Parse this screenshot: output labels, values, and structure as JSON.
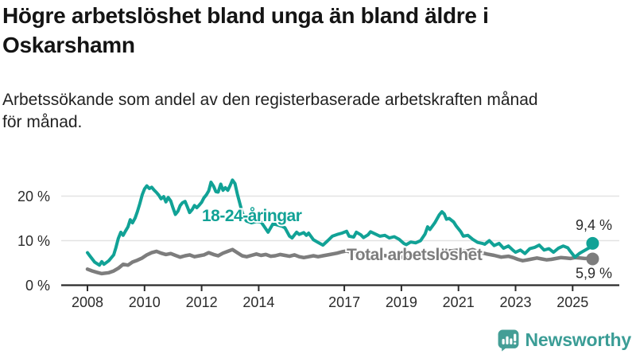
{
  "page": {
    "background": "#ffffff"
  },
  "header": {
    "title": "Högre arbetslöshet bland unga än bland äldre i Oskarshamn",
    "subtitle": "Arbetssökande som andel av den registerbaserade arbetskraften månad för månad."
  },
  "footer": {
    "brand": "Newsworthy",
    "brand_color": "#3b9d96"
  },
  "colors": {
    "grid": "#e2e2e2",
    "axis": "#2b2b2b",
    "tick_text": "#2b2b2b",
    "end_label_text": "#2b2b2b"
  },
  "chart_data": {
    "type": "line",
    "title": "Högre arbetslöshet bland unga än bland äldre i Oskarshamn",
    "subtitle": "Arbetssökande som andel av den registerbaserade arbetskraften månad för månad.",
    "xlabel": "",
    "ylabel": "",
    "unit": "%",
    "grid": "horizontal",
    "legend_position": "inline-labels",
    "xlim": [
      2007.1,
      2026.6
    ],
    "ylim": [
      0,
      28
    ],
    "x_ticks": [
      2008,
      2010,
      2012,
      2014,
      2017,
      2019,
      2021,
      2023,
      2025
    ],
    "y_ticks": [
      0,
      10,
      20
    ],
    "y_tick_labels": [
      "0 %",
      "10 %",
      "20 %"
    ],
    "series": [
      {
        "name": "18-24-åringar",
        "color": "#11a296",
        "line_width": 4,
        "end_label": "9,4 %",
        "end_label_side": "above",
        "last_value": 9.4,
        "points": [
          [
            2008.0,
            7.3
          ],
          [
            2008.08,
            6.6
          ],
          [
            2008.25,
            5.2
          ],
          [
            2008.42,
            4.5
          ],
          [
            2008.5,
            5.3
          ],
          [
            2008.58,
            4.7
          ],
          [
            2008.75,
            5.5
          ],
          [
            2008.92,
            6.8
          ],
          [
            2009.0,
            8.5
          ],
          [
            2009.08,
            10.5
          ],
          [
            2009.17,
            11.9
          ],
          [
            2009.25,
            11.2
          ],
          [
            2009.33,
            12.1
          ],
          [
            2009.42,
            13.1
          ],
          [
            2009.5,
            14.7
          ],
          [
            2009.58,
            14.0
          ],
          [
            2009.67,
            15.1
          ],
          [
            2009.75,
            16.5
          ],
          [
            2009.83,
            18.2
          ],
          [
            2009.92,
            20.3
          ],
          [
            2010.0,
            21.6
          ],
          [
            2010.08,
            22.3
          ],
          [
            2010.17,
            21.7
          ],
          [
            2010.25,
            22.0
          ],
          [
            2010.33,
            21.4
          ],
          [
            2010.42,
            20.8
          ],
          [
            2010.5,
            20.2
          ],
          [
            2010.58,
            19.4
          ],
          [
            2010.67,
            19.9
          ],
          [
            2010.75,
            18.7
          ],
          [
            2010.83,
            19.7
          ],
          [
            2010.92,
            18.9
          ],
          [
            2011.0,
            17.3
          ],
          [
            2011.08,
            15.9
          ],
          [
            2011.17,
            16.6
          ],
          [
            2011.25,
            17.9
          ],
          [
            2011.33,
            18.5
          ],
          [
            2011.42,
            18.8
          ],
          [
            2011.5,
            17.6
          ],
          [
            2011.58,
            16.3
          ],
          [
            2011.67,
            17.0
          ],
          [
            2011.75,
            17.9
          ],
          [
            2011.83,
            17.4
          ],
          [
            2011.92,
            18.0
          ],
          [
            2012.0,
            18.6
          ],
          [
            2012.08,
            19.6
          ],
          [
            2012.17,
            20.3
          ],
          [
            2012.25,
            21.2
          ],
          [
            2012.33,
            23.1
          ],
          [
            2012.42,
            22.2
          ],
          [
            2012.5,
            21.0
          ],
          [
            2012.58,
            20.9
          ],
          [
            2012.67,
            22.7
          ],
          [
            2012.75,
            21.3
          ],
          [
            2012.83,
            21.9
          ],
          [
            2012.92,
            21.3
          ],
          [
            2013.0,
            22.4
          ],
          [
            2013.08,
            23.6
          ],
          [
            2013.17,
            22.8
          ],
          [
            2013.25,
            20.5
          ],
          [
            2013.33,
            18.6
          ],
          [
            2013.42,
            16.4
          ],
          [
            2013.5,
            15.0
          ],
          [
            2013.58,
            14.4
          ],
          [
            2013.75,
            14.0
          ],
          [
            2013.92,
            14.3
          ],
          [
            2014.08,
            14.2
          ],
          [
            2014.17,
            13.4
          ],
          [
            2014.33,
            11.9
          ],
          [
            2014.5,
            13.8
          ],
          [
            2014.67,
            13.5
          ],
          [
            2014.83,
            13.2
          ],
          [
            2014.92,
            12.9
          ],
          [
            2015.08,
            11.0
          ],
          [
            2015.17,
            10.6
          ],
          [
            2015.33,
            11.9
          ],
          [
            2015.42,
            11.4
          ],
          [
            2015.58,
            11.8
          ],
          [
            2015.67,
            11.2
          ],
          [
            2015.75,
            11.7
          ],
          [
            2015.92,
            10.2
          ],
          [
            2016.08,
            9.6
          ],
          [
            2016.25,
            9.0
          ],
          [
            2016.42,
            10.0
          ],
          [
            2016.58,
            11.0
          ],
          [
            2016.75,
            11.4
          ],
          [
            2016.92,
            11.7
          ],
          [
            2017.08,
            12.1
          ],
          [
            2017.17,
            11.0
          ],
          [
            2017.33,
            10.8
          ],
          [
            2017.42,
            11.9
          ],
          [
            2017.58,
            11.3
          ],
          [
            2017.67,
            10.7
          ],
          [
            2017.83,
            11.3
          ],
          [
            2017.92,
            12.0
          ],
          [
            2018.08,
            11.5
          ],
          [
            2018.25,
            11.0
          ],
          [
            2018.42,
            11.2
          ],
          [
            2018.58,
            10.6
          ],
          [
            2018.75,
            10.9
          ],
          [
            2018.92,
            10.3
          ],
          [
            2019.08,
            9.4
          ],
          [
            2019.17,
            9.1
          ],
          [
            2019.33,
            9.7
          ],
          [
            2019.5,
            9.5
          ],
          [
            2019.67,
            10.0
          ],
          [
            2019.83,
            11.5
          ],
          [
            2019.92,
            13.1
          ],
          [
            2020.0,
            12.5
          ],
          [
            2020.17,
            14.0
          ],
          [
            2020.33,
            15.8
          ],
          [
            2020.42,
            16.5
          ],
          [
            2020.5,
            16.0
          ],
          [
            2020.58,
            14.8
          ],
          [
            2020.67,
            15.0
          ],
          [
            2020.83,
            14.2
          ],
          [
            2020.92,
            13.3
          ],
          [
            2021.08,
            12.0
          ],
          [
            2021.17,
            11.0
          ],
          [
            2021.33,
            11.2
          ],
          [
            2021.5,
            10.3
          ],
          [
            2021.67,
            9.6
          ],
          [
            2021.83,
            9.4
          ],
          [
            2021.92,
            9.2
          ],
          [
            2022.08,
            10.0
          ],
          [
            2022.25,
            8.9
          ],
          [
            2022.42,
            9.4
          ],
          [
            2022.58,
            8.3
          ],
          [
            2022.75,
            8.8
          ],
          [
            2022.92,
            7.8
          ],
          [
            2023.0,
            7.4
          ],
          [
            2023.17,
            7.9
          ],
          [
            2023.33,
            7.1
          ],
          [
            2023.5,
            8.2
          ],
          [
            2023.67,
            8.5
          ],
          [
            2023.83,
            9.0
          ],
          [
            2024.0,
            7.9
          ],
          [
            2024.17,
            8.2
          ],
          [
            2024.33,
            7.4
          ],
          [
            2024.5,
            8.3
          ],
          [
            2024.67,
            8.8
          ],
          [
            2024.83,
            8.4
          ],
          [
            2024.92,
            7.6
          ],
          [
            2025.08,
            6.3
          ],
          [
            2025.25,
            7.2
          ],
          [
            2025.42,
            7.8
          ],
          [
            2025.58,
            8.4
          ],
          [
            2025.7,
            9.4
          ]
        ]
      },
      {
        "name": "Total arbetslöshet",
        "color": "#7d7d7d",
        "line_width": 4.5,
        "end_label": "5,9 %",
        "end_label_side": "below",
        "last_value": 5.9,
        "points": [
          [
            2008.0,
            3.6
          ],
          [
            2008.17,
            3.2
          ],
          [
            2008.33,
            2.9
          ],
          [
            2008.5,
            2.6
          ],
          [
            2008.75,
            2.8
          ],
          [
            2008.92,
            3.2
          ],
          [
            2009.08,
            3.8
          ],
          [
            2009.25,
            4.7
          ],
          [
            2009.42,
            4.5
          ],
          [
            2009.58,
            5.2
          ],
          [
            2009.75,
            5.6
          ],
          [
            2009.92,
            6.1
          ],
          [
            2010.08,
            6.8
          ],
          [
            2010.25,
            7.3
          ],
          [
            2010.42,
            7.6
          ],
          [
            2010.58,
            7.2
          ],
          [
            2010.75,
            6.9
          ],
          [
            2010.92,
            7.1
          ],
          [
            2011.08,
            6.7
          ],
          [
            2011.25,
            6.3
          ],
          [
            2011.42,
            6.6
          ],
          [
            2011.58,
            6.8
          ],
          [
            2011.75,
            6.4
          ],
          [
            2011.92,
            6.6
          ],
          [
            2012.08,
            6.8
          ],
          [
            2012.25,
            7.3
          ],
          [
            2012.42,
            6.9
          ],
          [
            2012.58,
            6.6
          ],
          [
            2012.75,
            7.2
          ],
          [
            2012.92,
            7.6
          ],
          [
            2013.08,
            8.0
          ],
          [
            2013.25,
            7.3
          ],
          [
            2013.42,
            6.6
          ],
          [
            2013.58,
            6.4
          ],
          [
            2013.75,
            6.7
          ],
          [
            2013.92,
            7.0
          ],
          [
            2014.08,
            6.7
          ],
          [
            2014.25,
            6.9
          ],
          [
            2014.42,
            6.5
          ],
          [
            2014.58,
            6.6
          ],
          [
            2014.75,
            6.9
          ],
          [
            2014.92,
            6.7
          ],
          [
            2015.08,
            6.5
          ],
          [
            2015.25,
            6.8
          ],
          [
            2015.42,
            6.4
          ],
          [
            2015.58,
            6.2
          ],
          [
            2015.75,
            6.4
          ],
          [
            2015.92,
            6.6
          ],
          [
            2016.08,
            6.4
          ],
          [
            2016.25,
            6.6
          ],
          [
            2016.5,
            6.9
          ],
          [
            2016.75,
            7.2
          ],
          [
            2016.92,
            7.5
          ],
          [
            2017.08,
            7.7
          ],
          [
            2017.25,
            7.4
          ],
          [
            2017.5,
            7.2
          ],
          [
            2017.75,
            7.0
          ],
          [
            2018.0,
            6.9
          ],
          [
            2018.25,
            6.7
          ],
          [
            2018.5,
            6.6
          ],
          [
            2018.75,
            6.4
          ],
          [
            2019.0,
            6.3
          ],
          [
            2019.25,
            6.2
          ],
          [
            2019.5,
            6.4
          ],
          [
            2019.75,
            6.6
          ],
          [
            2020.0,
            6.9
          ],
          [
            2020.25,
            7.4
          ],
          [
            2020.5,
            7.8
          ],
          [
            2020.75,
            7.7
          ],
          [
            2021.0,
            7.9
          ],
          [
            2021.25,
            7.6
          ],
          [
            2021.5,
            8.0
          ],
          [
            2021.75,
            7.4
          ],
          [
            2022.0,
            7.0
          ],
          [
            2022.25,
            6.7
          ],
          [
            2022.5,
            6.3
          ],
          [
            2022.75,
            6.5
          ],
          [
            2022.92,
            6.2
          ],
          [
            2023.08,
            5.8
          ],
          [
            2023.25,
            5.5
          ],
          [
            2023.42,
            5.7
          ],
          [
            2023.58,
            5.9
          ],
          [
            2023.75,
            6.1
          ],
          [
            2023.92,
            5.9
          ],
          [
            2024.08,
            5.7
          ],
          [
            2024.25,
            5.8
          ],
          [
            2024.42,
            6.0
          ],
          [
            2024.58,
            6.2
          ],
          [
            2024.75,
            6.1
          ],
          [
            2024.92,
            6.0
          ],
          [
            2025.08,
            6.2
          ],
          [
            2025.25,
            6.1
          ],
          [
            2025.42,
            6.0
          ],
          [
            2025.58,
            6.0
          ],
          [
            2025.7,
            5.9
          ]
        ]
      }
    ]
  }
}
